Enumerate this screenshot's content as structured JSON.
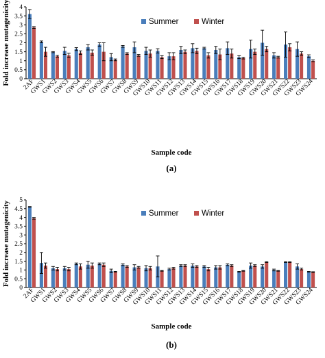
{
  "chart_data": [
    {
      "type": "bar",
      "panel_label": "(a)",
      "categories": [
        "2AF",
        "GWS1",
        "GWS2",
        "GWS3",
        "GWS4",
        "GWS5",
        "GWS6",
        "GWS7",
        "GWS8",
        "GWS9",
        "GWS10",
        "GWS11",
        "GWS12",
        "GWS13",
        "GWS14",
        "GWS15",
        "GWS16",
        "GWS17",
        "GWS18",
        "GWS19",
        "GWS20",
        "GWS21",
        "GWS22",
        "GWS23",
        "GWS24"
      ],
      "series": [
        {
          "name": "Summer",
          "color": "#4a7ebb",
          "values": [
            3.6,
            2.05,
            1.48,
            1.55,
            1.65,
            1.75,
            1.9,
            1.2,
            1.8,
            1.75,
            1.55,
            1.55,
            1.25,
            1.6,
            1.7,
            1.7,
            1.6,
            1.7,
            1.2,
            1.65,
            2.0,
            1.3,
            1.9,
            1.65,
            1.25
          ],
          "errors": [
            0.25,
            0.05,
            0.03,
            0.2,
            0.08,
            0.15,
            0.1,
            0.2,
            0.05,
            0.3,
            0.2,
            0.12,
            0.2,
            0.2,
            0.25,
            0.05,
            0.2,
            0.35,
            0.08,
            0.5,
            0.7,
            0.15,
            0.7,
            0.4,
            0.08
          ]
        },
        {
          "name": "Winter",
          "color": "#c0504d",
          "values": [
            2.85,
            1.5,
            1.25,
            1.3,
            1.45,
            1.45,
            1.5,
            1.05,
            1.4,
            1.3,
            1.4,
            1.2,
            1.25,
            1.5,
            1.55,
            1.3,
            1.35,
            1.4,
            1.15,
            1.5,
            1.65,
            1.2,
            1.75,
            1.4,
            1.0
          ],
          "errors": [
            0.05,
            0.25,
            0.05,
            0.12,
            0.1,
            0.15,
            0.5,
            0.05,
            0.05,
            0.05,
            0.2,
            0.08,
            0.2,
            0.1,
            0.15,
            0.15,
            0.3,
            0.25,
            0.05,
            0.15,
            0.15,
            0.05,
            0.2,
            0.1,
            0.05
          ]
        }
      ],
      "ylim": [
        0,
        4
      ],
      "yticks": [
        0,
        0.5,
        1,
        1.5,
        2,
        2.5,
        3,
        3.5,
        4
      ],
      "xlabel": "Sample code",
      "ylabel": "Fold increase mutagenicity",
      "legend_position": "top-center",
      "grid": false
    },
    {
      "type": "bar",
      "panel_label": "(b)",
      "categories": [
        "2AF",
        "GWS1",
        "GWS2",
        "GWS3",
        "GWS4",
        "GWS5",
        "GWS6",
        "GWS7",
        "GWS8",
        "GWS9",
        "GWS10",
        "GWS11",
        "GWS12",
        "GWS13",
        "GWS14",
        "GWS15",
        "GWS16",
        "GWS17",
        "GWS18",
        "GWS19",
        "GWS20",
        "GWS21",
        "GWS22",
        "GWS23",
        "GWS24"
      ],
      "series": [
        {
          "name": "Summer",
          "color": "#4a7ebb",
          "values": [
            4.6,
            1.4,
            1.1,
            1.1,
            1.35,
            1.3,
            1.35,
            0.95,
            1.3,
            1.15,
            1.1,
            1.2,
            1.05,
            1.25,
            1.25,
            1.2,
            1.15,
            1.3,
            0.9,
            1.25,
            1.2,
            1.0,
            1.45,
            1.2,
            0.9
          ],
          "errors": [
            0.02,
            0.6,
            0.1,
            0.1,
            0.05,
            0.2,
            0.05,
            0.1,
            0.05,
            0.15,
            0.15,
            0.6,
            0.05,
            0.05,
            0.1,
            0.05,
            0.1,
            0.05,
            0.02,
            0.15,
            0.1,
            0.05,
            0.02,
            0.15,
            0.02
          ]
        },
        {
          "name": "Winter",
          "color": "#c0504d",
          "values": [
            3.95,
            1.25,
            1.05,
            1.05,
            1.2,
            1.25,
            1.3,
            0.9,
            1.2,
            1.15,
            1.1,
            0.95,
            1.1,
            1.25,
            1.2,
            1.05,
            1.15,
            1.25,
            0.95,
            1.25,
            1.45,
            0.95,
            1.45,
            1.05,
            0.88
          ],
          "errors": [
            0.05,
            0.15,
            0.1,
            0.1,
            0.15,
            0.15,
            0.1,
            0.02,
            0.05,
            0.05,
            0.1,
            0.02,
            0.05,
            0.05,
            0.05,
            0.1,
            0.1,
            0.05,
            0.02,
            0.05,
            0.02,
            0.02,
            0.02,
            0.05,
            0.02
          ]
        }
      ],
      "ylim": [
        0,
        5
      ],
      "yticks": [
        0,
        0.5,
        1,
        1.5,
        2,
        2.5,
        3,
        3.5,
        4,
        4.5,
        5
      ],
      "xlabel": "Sample code",
      "ylabel": "Fold increase mutagenicity",
      "legend_position": "top-center",
      "grid": false
    }
  ]
}
